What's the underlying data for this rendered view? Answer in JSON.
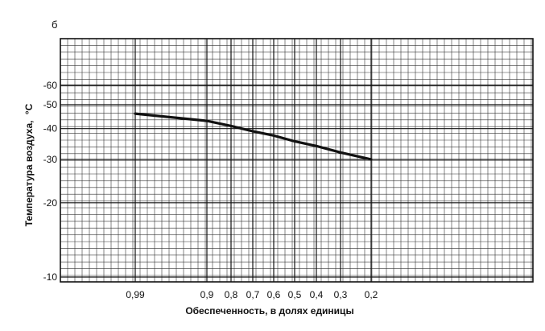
{
  "chart_data": {
    "type": "line",
    "panel_label": "б",
    "xlabel": "Обеспеченность, в долях единицы",
    "ylabel": "Температура воздуха,",
    "ylabel_unit": "°C",
    "x_ticks": [
      {
        "value": 0.99,
        "label": "0,99"
      },
      {
        "value": 0.9,
        "label": "0,9"
      },
      {
        "value": 0.8,
        "label": "0,8"
      },
      {
        "value": 0.7,
        "label": "0,7"
      },
      {
        "value": 0.6,
        "label": "0,6"
      },
      {
        "value": 0.5,
        "label": "0,5"
      },
      {
        "value": 0.4,
        "label": "0,4"
      },
      {
        "value": 0.3,
        "label": "0,3"
      },
      {
        "value": 0.2,
        "label": "0,2"
      }
    ],
    "y_ticks": [
      {
        "value": -10,
        "label": "-10"
      },
      {
        "value": -20,
        "label": "-20"
      },
      {
        "value": -30,
        "label": "-30"
      },
      {
        "value": -40,
        "label": "-40"
      },
      {
        "value": -50,
        "label": "-50"
      },
      {
        "value": -60,
        "label": "-60"
      }
    ],
    "y_scale": "log",
    "ylim": [
      -10,
      -90
    ],
    "series": [
      {
        "x": [
          0.99,
          0.9,
          0.8,
          0.7,
          0.6,
          0.5,
          0.4,
          0.3,
          0.2
        ],
        "y": [
          -46,
          -43,
          -41,
          -39,
          -37.5,
          -35.5,
          -34,
          -32,
          -30
        ]
      }
    ],
    "line_color": "#111111",
    "grid": true
  }
}
